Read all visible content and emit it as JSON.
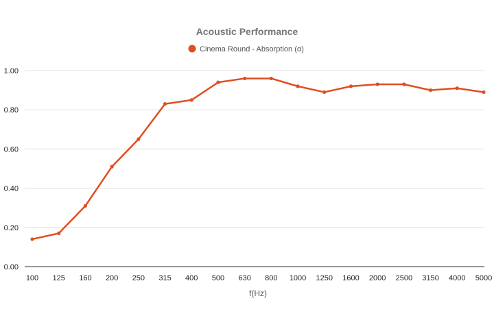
{
  "chart_data": {
    "type": "line",
    "title": "Acoustic Performance",
    "xlabel": "f(Hz)",
    "ylabel": "",
    "categories": [
      "100",
      "125",
      "160",
      "200",
      "250",
      "315",
      "400",
      "500",
      "630",
      "800",
      "1000",
      "1250",
      "1600",
      "2000",
      "2500",
      "3150",
      "4000",
      "5000"
    ],
    "series": [
      {
        "name": "Cinema Round - Absorption (α)",
        "color": "#e04e1f",
        "values": [
          0.14,
          0.17,
          0.31,
          0.51,
          0.65,
          0.83,
          0.85,
          0.94,
          0.96,
          0.96,
          0.92,
          0.89,
          0.92,
          0.93,
          0.93,
          0.9,
          0.91,
          0.89
        ]
      }
    ],
    "ylim": [
      0,
      1.0
    ],
    "yticks": [
      "0.00",
      "0.20",
      "0.40",
      "0.60",
      "0.80",
      "1.00"
    ],
    "grid": true,
    "legend_position": "top-center"
  }
}
